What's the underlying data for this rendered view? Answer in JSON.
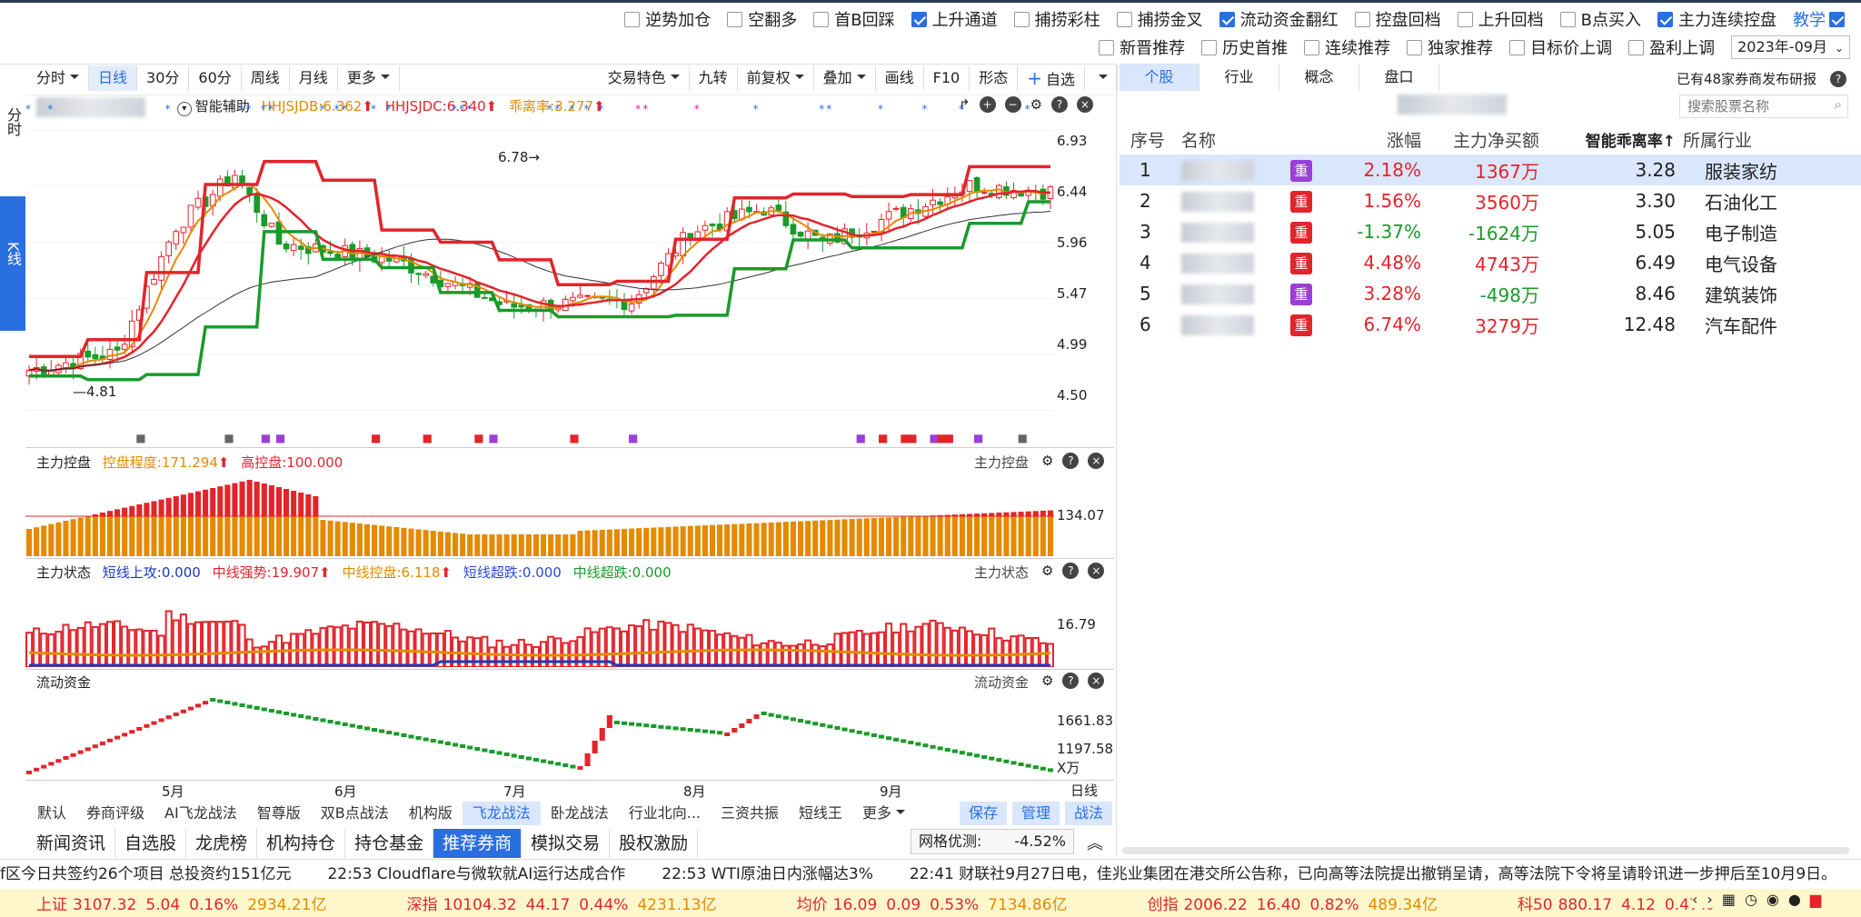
{
  "top_options_row1": [
    {
      "label": "逆势加仓",
      "checked": false
    },
    {
      "label": "空翻多",
      "checked": false
    },
    {
      "label": "首B回踩",
      "checked": false
    },
    {
      "label": "上升通道",
      "checked": true
    },
    {
      "label": "捕捞彩柱",
      "checked": false
    },
    {
      "label": "捕捞金叉",
      "checked": false
    },
    {
      "label": "流动资金翻红",
      "checked": true
    },
    {
      "label": "控盘回档",
      "checked": false
    },
    {
      "label": "上升回档",
      "checked": false
    },
    {
      "label": "B点买入",
      "checked": false
    },
    {
      "label": "主力连续控盘",
      "checked": true
    }
  ],
  "teach_label": "教学",
  "top_options_row2": [
    {
      "label": "新晋推荐",
      "checked": false
    },
    {
      "label": "历史首推",
      "checked": false
    },
    {
      "label": "连续推荐",
      "checked": false
    },
    {
      "label": "独家推荐",
      "checked": false
    },
    {
      "label": "目标价上调",
      "checked": false
    },
    {
      "label": "盈利上调",
      "checked": false
    }
  ],
  "month_select": "2023年-09月",
  "toolbar_left": [
    {
      "label": "分时",
      "dd": true
    },
    {
      "label": "日线",
      "active": true
    },
    {
      "label": "30分"
    },
    {
      "label": "60分"
    },
    {
      "label": "周线"
    },
    {
      "label": "月线"
    },
    {
      "label": "更多",
      "dd": true
    }
  ],
  "toolbar_right": [
    {
      "label": "交易特色",
      "dd": true
    },
    {
      "label": "九转"
    },
    {
      "label": "前复权",
      "dd": true
    },
    {
      "label": "叠加",
      "dd": true
    },
    {
      "label": "画线"
    },
    {
      "label": "F10"
    },
    {
      "label": "形态"
    },
    {
      "label": "自选",
      "plus": true
    }
  ],
  "side_tabs": {
    "fenshi": "分时",
    "kxian": "K线"
  },
  "main_panel": {
    "assist": "智能辅助",
    "hhjsjdb": "HHJSJDB:6.362",
    "hhjsjdc": "HHJSJDC:6.340",
    "deviation": "乖离率:3.277",
    "annot_high": "6.78",
    "annot_low": "4.81",
    "y_ticks": [
      "6.93",
      "6.44",
      "5.96",
      "5.47",
      "4.99",
      "4.50"
    ]
  },
  "panel2": {
    "name": "主力控盘",
    "p1": "控盘程度:171.294",
    "p2": "高控盘:100.000",
    "y": "134.07"
  },
  "panel3": {
    "name": "主力状态",
    "p1": "短线上攻:0.000",
    "p2": "中线强势:19.907",
    "p3": "中线控盘:6.118",
    "p4": "短线超跌:0.000",
    "p5": "中线超跌:0.000",
    "y": "16.79"
  },
  "panel4": {
    "name": "流动资金",
    "y1": "1661.83",
    "y2": "1197.58",
    "unit": "X万"
  },
  "x_axis": [
    "5月",
    "6月",
    "7月",
    "8月",
    "9月"
  ],
  "period_label": "日线",
  "strategy_tabs": [
    {
      "label": "默认"
    },
    {
      "label": "券商评级"
    },
    {
      "label": "AI飞龙战法"
    },
    {
      "label": "智尊版"
    },
    {
      "label": "双B点战法"
    },
    {
      "label": "机构版"
    },
    {
      "label": "飞龙战法",
      "active": true
    },
    {
      "label": "卧龙战法"
    },
    {
      "label": "行业北向..."
    },
    {
      "label": "三资共振"
    },
    {
      "label": "短线王"
    },
    {
      "label": "更多",
      "dd": true
    }
  ],
  "strategy_actions": [
    "保存",
    "管理",
    "战法"
  ],
  "nav_tabs": [
    {
      "label": "新闻资讯"
    },
    {
      "label": "自选股"
    },
    {
      "label": "龙虎榜"
    },
    {
      "label": "机构持仓"
    },
    {
      "label": "持仓基金"
    },
    {
      "label": "推荐券商",
      "active": true
    },
    {
      "label": "模拟交易"
    },
    {
      "label": "股权激励"
    }
  ],
  "grid_label": "网格优测:",
  "grid_value": "-4.52%",
  "right_tabs": [
    {
      "label": "个股",
      "active": true
    },
    {
      "label": "行业"
    },
    {
      "label": "概念"
    },
    {
      "label": "盘口"
    }
  ],
  "broker_note": "已有48家券商发布研报",
  "search_placeholder": "搜索股票名称",
  "table_headers": [
    "序号",
    "名称",
    "涨幅",
    "主力净买额",
    "智能乖离率↑",
    "所属行业"
  ],
  "rows": [
    {
      "no": "1",
      "chg": "2.18%",
      "net": "1367万",
      "dev": "3.28",
      "ind": "服装家纺",
      "chg_up": true,
      "net_up": true,
      "purple": true
    },
    {
      "no": "2",
      "chg": "1.56%",
      "net": "3560万",
      "dev": "3.30",
      "ind": "石油化工",
      "chg_up": true,
      "net_up": true,
      "purple": false
    },
    {
      "no": "3",
      "chg": "-1.37%",
      "net": "-1624万",
      "dev": "5.05",
      "ind": "电子制造",
      "chg_up": false,
      "net_up": false,
      "purple": false
    },
    {
      "no": "4",
      "chg": "4.48%",
      "net": "4743万",
      "dev": "6.49",
      "ind": "电气设备",
      "chg_up": true,
      "net_up": true,
      "purple": false
    },
    {
      "no": "5",
      "chg": "3.28%",
      "net": "-498万",
      "dev": "8.46",
      "ind": "建筑装饰",
      "chg_up": true,
      "net_up": false,
      "purple": true
    },
    {
      "no": "6",
      "chg": "6.74%",
      "net": "3279万",
      "dev": "12.48",
      "ind": "汽车配件",
      "chg_up": true,
      "net_up": true,
      "purple": false
    }
  ],
  "badge_label": "重",
  "news": [
    "f区今日共签约26个项目 总投资约151亿元",
    "22:53 Cloudflare与微软就AI运行达成合作",
    "22:53 WTI原油日内涨幅达3%",
    "22:41 财联社9月27日电，佳兆业集团在港交所公告称，已向高等法院提出撤销呈请，高等法院下令将呈请聆讯进一步押后至10月9日。"
  ],
  "tickers": [
    {
      "name": "上证",
      "price": "3107.32",
      "chg": "5.04",
      "pct": "0.16%",
      "amt": "2934.21亿"
    },
    {
      "name": "深指",
      "price": "10104.32",
      "chg": "44.17",
      "pct": "0.44%",
      "amt": "4231.13亿"
    },
    {
      "name": "均价",
      "price": "16.09",
      "chg": "0.09",
      "pct": "0.53%",
      "amt": "7134.86亿"
    },
    {
      "name": "创指",
      "price": "2006.22",
      "chg": "16.40",
      "pct": "0.82%",
      "amt": "489.34亿"
    },
    {
      "name": "科50",
      "price": "880.17",
      "chg": "4.12",
      "pct": "0.47%",
      "amt": ""
    }
  ]
}
